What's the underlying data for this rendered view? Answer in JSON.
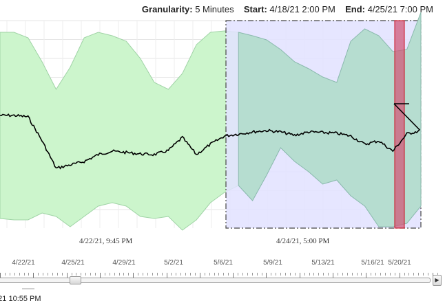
{
  "header": {
    "granularity_label": "Granularity:",
    "granularity_value": "5 Minutes",
    "start_label": "Start:",
    "start_value": "4/18/21 2:00 PM",
    "end_label": "End:",
    "end_value": "4/25/21 7:00 PM"
  },
  "chart_data": {
    "type": "area",
    "x_tick_labels": [
      "4/22/21, 9:45 PM",
      "4/24/21, 5:00 PM"
    ],
    "y_tick_labels": [],
    "series": [
      {
        "role": "band_upper",
        "values": [
          47,
          47,
          55,
          90,
          130,
          98,
          55,
          47,
          52,
          60,
          85,
          120,
          130,
          107,
          65,
          47,
          45,
          47,
          52,
          58,
          72,
          90,
          100,
          112,
          120,
          60,
          42,
          52,
          75,
          72,
          18
        ]
      },
      {
        "role": "line",
        "values": [
          172,
          172,
          170,
          135,
          95,
          100,
          105,
          115,
          120,
          118,
          116,
          115,
          121,
          140,
          115,
          130,
          142,
          145,
          148,
          150,
          148,
          143,
          148,
          147,
          146,
          142,
          130,
          135,
          120,
          145,
          150
        ]
      },
      {
        "role": "band_lower",
        "values": [
          318,
          320,
          320,
          310,
          315,
          330,
          315,
          300,
          295,
          300,
          315,
          318,
          315,
          335,
          320,
          295,
          280,
          270,
          292,
          255,
          215,
          235,
          250,
          268,
          262,
          285,
          300,
          330,
          330,
          325,
          300
        ]
      }
    ],
    "highlighted_selection": {
      "start": "4/23/21",
      "end": "4/25/21 7:00 PM"
    },
    "anomaly_window": true,
    "colors": {
      "band_outside": "#ccf5cc",
      "band_inside": "#b6ddd0",
      "selection": "#e2e2ff",
      "anomaly": "#d05a7a",
      "line": "#000000"
    }
  },
  "timeline": {
    "labels": [
      "4/22/21",
      "4/25/21",
      "4/29/21",
      "5/2/21",
      "5/6/21",
      "5/9/21",
      "5/13/21",
      "5/16/21",
      "5/20/21"
    ],
    "thumb_fraction": 0.17
  },
  "footer_text": "5/21 10:55 PM",
  "icons": {
    "scroll_right": "arrow-right-icon"
  }
}
